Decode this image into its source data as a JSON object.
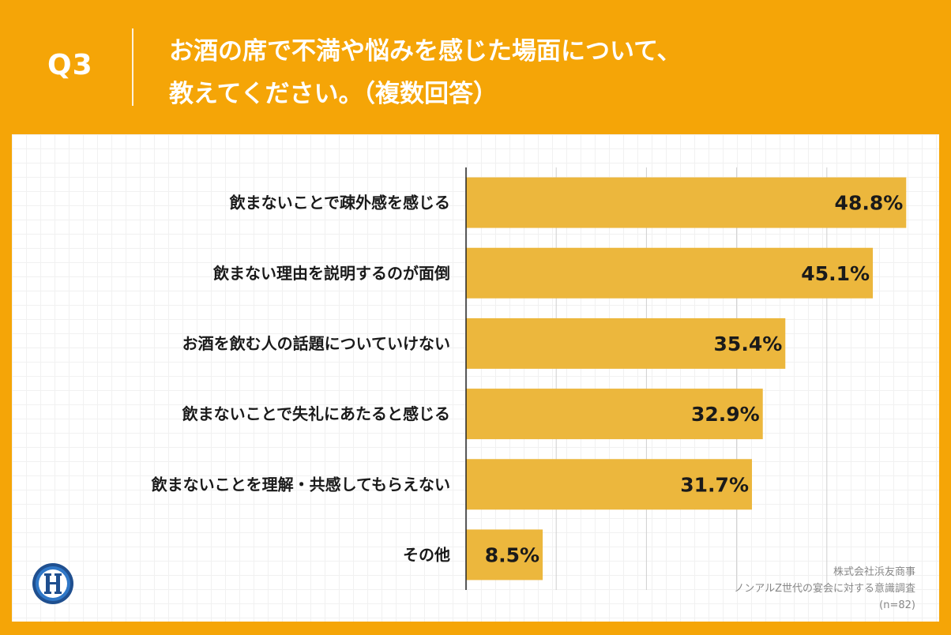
{
  "header": {
    "question_no": "Q3",
    "title": "お酒の席で不満や悩みを感じた場面について、\n教えてください。（複数回答）"
  },
  "chart_data": {
    "type": "bar",
    "orientation": "horizontal",
    "categories": [
      "飲まないことで疎外感を感じる",
      "飲まない理由を説明するのが面倒",
      "お酒を飲む人の話題についていけない",
      "飲まないことで失礼にあたると感じる",
      "飲まないことを理解・共感してもらえない",
      "その他"
    ],
    "values": [
      48.8,
      45.1,
      35.4,
      32.9,
      31.7,
      8.5
    ],
    "value_labels": [
      "48.8%",
      "45.1%",
      "35.4%",
      "32.9%",
      "31.7%",
      "8.5%"
    ],
    "xlim": [
      0,
      50
    ],
    "grid": true,
    "bar_color": "#ecb73d"
  },
  "source": {
    "company": "株式会社浜友商事",
    "survey": "ノンアルZ世代の宴会に対する意識調査",
    "n": "(n=82)"
  },
  "colors": {
    "background": "#f5a507",
    "panel": "#ffffff",
    "bar": "#ecb73d",
    "axis": "#222222",
    "gridline": "#cfcfcf"
  }
}
